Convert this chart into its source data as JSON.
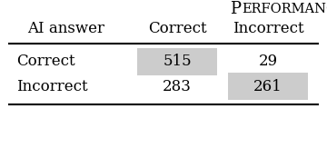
{
  "title_big": "P",
  "title_small": "ERFORMANCE",
  "col_header_1": "Correct",
  "col_header_2": "Incorrect",
  "row_header_label": "AI answer",
  "rows": [
    "Correct",
    "Incorrect"
  ],
  "values": [
    [
      515,
      29
    ],
    [
      283,
      261
    ]
  ],
  "highlight_color": "#cccccc",
  "bg_color": "#ffffff",
  "text_color": "#000000",
  "line_color": "#000000",
  "title_big_fontsize": 13,
  "title_small_fontsize": 10.5,
  "header_fontsize": 12,
  "cell_fontsize": 12,
  "row_label_fontsize": 12
}
